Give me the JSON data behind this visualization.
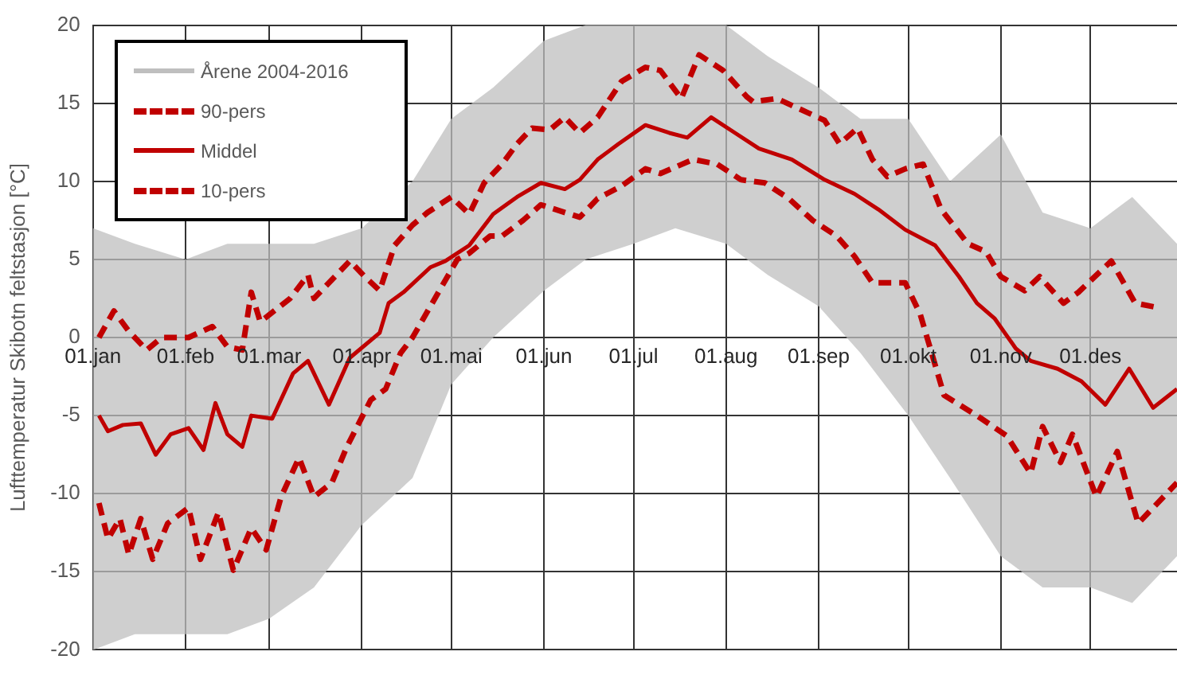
{
  "chart_data": {
    "type": "line",
    "ylabel": "Lufttemperatur Skibotn feltstasjon [°C]",
    "xlim": [
      "--01-01",
      "--12-30"
    ],
    "xticks": [
      {
        "value": "--01-01",
        "label": "01.jan"
      },
      {
        "value": "--02-01",
        "label": "01.feb"
      },
      {
        "value": "--03-01",
        "label": "01.mar"
      },
      {
        "value": "--04-01",
        "label": "01.apr"
      },
      {
        "value": "--05-01",
        "label": "01.mai"
      },
      {
        "value": "--06-01",
        "label": "01.jun"
      },
      {
        "value": "--07-01",
        "label": "01.jul"
      },
      {
        "value": "--08-01",
        "label": "01.aug"
      },
      {
        "value": "--09-01",
        "label": "01.sep"
      },
      {
        "value": "--10-01",
        "label": "01.okt"
      },
      {
        "value": "--11-01",
        "label": "01.nov"
      },
      {
        "value": "--12-01",
        "label": "01.des"
      }
    ],
    "ylim": [
      -20,
      20
    ],
    "yticks": [
      -20,
      -15,
      -10,
      -5,
      0,
      5,
      10,
      15,
      20
    ],
    "grid": true,
    "legend": "top left",
    "series": [
      {
        "name": "Årene 2004-2016",
        "color": "#bfbfbf",
        "x": [
          "--01-01",
          "--01-15",
          "--02-01",
          "--02-15",
          "--03-01",
          "--03-16",
          "--04-01",
          "--04-18",
          "--05-01",
          "--05-15",
          "--06-01",
          "--06-15",
          "--07-01",
          "--07-15",
          "--08-01",
          "--08-15",
          "--09-01",
          "--09-15",
          "--10-01",
          "--10-15",
          "--11-01",
          "--11-15",
          "--12-01",
          "--12-15",
          "--12-30"
        ],
        "values": [
          null,
          null,
          null,
          null,
          null,
          null,
          null,
          null,
          null,
          null,
          null,
          null,
          null,
          null,
          null,
          null,
          null,
          null,
          null,
          null,
          null,
          null,
          null,
          null,
          null
        ],
        "upper": [
          7,
          6,
          5,
          6,
          6,
          6,
          7,
          10,
          14,
          16,
          19,
          20,
          20,
          20,
          20,
          18,
          16,
          14,
          14,
          10,
          13,
          8,
          7,
          9,
          6
        ],
        "lower": [
          -20,
          -19,
          -19,
          -19,
          -18,
          -16,
          -12,
          -9,
          -3,
          0,
          3,
          5,
          6,
          7,
          6,
          4,
          2,
          -1,
          -5,
          -9,
          -14,
          -16,
          -16,
          -17,
          -14
        ]
      },
      {
        "name": "90-pers",
        "color": "#c00000",
        "line_style": "dashed",
        "x": [
          "--01-03",
          "--01-08",
          "--01-13",
          "--01-19",
          "--01-24",
          "--02-02",
          "--02-10",
          "--02-15",
          "--02-20",
          "--02-23",
          "--02-26",
          "--03-08",
          "--03-14",
          "--03-16",
          "--03-28",
          "--04-02",
          "--04-07",
          "--04-12",
          "--04-18",
          "--04-23",
          "--05-01",
          "--05-07",
          "--05-12",
          "--05-18",
          "--05-23",
          "--05-28",
          "--06-03",
          "--06-08",
          "--06-13",
          "--06-19",
          "--06-27",
          "--07-05",
          "--07-10",
          "--07-17",
          "--07-23",
          "--07-31",
          "--08-08",
          "--08-10",
          "--08-18",
          "--08-26",
          "--09-03",
          "--09-08",
          "--09-14",
          "--09-19",
          "--09-24",
          "--09-30",
          "--10-06",
          "--10-12",
          "--10-21",
          "--10-27",
          "--11-01",
          "--11-09",
          "--11-14",
          "--11-22",
          "--11-27",
          "--12-08",
          "--12-16",
          "--12-24"
        ],
        "values": [
          0,
          1.7,
          0.4,
          -0.8,
          0,
          0,
          0.7,
          -0.6,
          -0.8,
          2.9,
          1,
          2.5,
          4,
          2.5,
          4.9,
          3.9,
          3,
          5.9,
          7.2,
          8,
          9,
          7.9,
          9.9,
          11.1,
          12.4,
          13.4,
          13.3,
          14.1,
          13.1,
          14.1,
          16.4,
          17.3,
          17.1,
          15.3,
          18.1,
          17.1,
          15.4,
          15.1,
          15.3,
          14.6,
          13.9,
          12.4,
          13.4,
          11.4,
          10.3,
          10.8,
          11.1,
          8.2,
          6,
          5.5,
          3.9,
          3,
          3.9,
          2.2,
          2.9,
          4.9,
          2.2,
          1.9
        ]
      },
      {
        "name": "Middel",
        "color": "#c00000",
        "line_style": "solid",
        "x": [
          "--01-03",
          "--01-06",
          "--01-11",
          "--01-17",
          "--01-22",
          "--01-27",
          "--02-02",
          "--02-07",
          "--02-11",
          "--02-15",
          "--02-20",
          "--02-23",
          "--03-02",
          "--03-09",
          "--03-14",
          "--03-21",
          "--03-28",
          "--04-07",
          "--04-10",
          "--04-15",
          "--04-24",
          "--04-29",
          "--05-07",
          "--05-15",
          "--05-23",
          "--05-31",
          "--06-08",
          "--06-13",
          "--06-19",
          "--06-26",
          "--07-05",
          "--07-13",
          "--07-19",
          "--07-27",
          "--08-04",
          "--08-12",
          "--08-23",
          "--09-03",
          "--09-13",
          "--09-21",
          "--09-30",
          "--10-10",
          "--10-18",
          "--10-24",
          "--10-30",
          "--11-06",
          "--11-11",
          "--11-20",
          "--11-28",
          "--12-06",
          "--12-14",
          "--12-22",
          "--12-30"
        ],
        "values": [
          -5,
          -6,
          -5.6,
          -5.5,
          -7.5,
          -6.2,
          -5.8,
          -7.2,
          -4.2,
          -6.2,
          -7,
          -5,
          -5.2,
          -2.3,
          -1.5,
          -4.3,
          -1.3,
          0.3,
          2.2,
          2.9,
          4.5,
          4.9,
          5.9,
          7.9,
          9,
          9.9,
          9.5,
          10.1,
          11.4,
          12.4,
          13.6,
          13.1,
          12.8,
          14.1,
          13.1,
          12.1,
          11.4,
          10.1,
          9.2,
          8.2,
          6.9,
          5.9,
          3.9,
          2.2,
          1.2,
          -0.7,
          -1.5,
          -2,
          -2.8,
          -4.3,
          -2,
          -4.5,
          -3.3
        ]
      },
      {
        "name": "10-pers",
        "color": "#c00000",
        "line_style": "dashed",
        "x": [
          "--01-03",
          "--01-06",
          "--01-10",
          "--01-13",
          "--01-17",
          "--01-21",
          "--01-26",
          "--02-02",
          "--02-06",
          "--02-12",
          "--02-17",
          "--02-23",
          "--02-28",
          "--03-05",
          "--03-11",
          "--03-16",
          "--03-22",
          "--03-27",
          "--04-04",
          "--04-09",
          "--04-14",
          "--04-18",
          "--05-03",
          "--05-07",
          "--05-14",
          "--05-18",
          "--05-25",
          "--05-31",
          "--06-13",
          "--06-19",
          "--06-27",
          "--07-05",
          "--07-10",
          "--07-21",
          "--07-29",
          "--08-06",
          "--08-14",
          "--08-22",
          "--08-30",
          "--09-07",
          "--09-13",
          "--09-19",
          "--09-30",
          "--10-05",
          "--10-13",
          "--10-24",
          "--11-03",
          "--11-11",
          "--11-15",
          "--11-21",
          "--11-25",
          "--12-03",
          "--12-10",
          "--12-17",
          "--12-30"
        ],
        "values": [
          -10.6,
          -12.9,
          -11.6,
          -13.9,
          -11.6,
          -14.2,
          -11.9,
          -10.9,
          -14.2,
          -11.2,
          -14.9,
          -12.2,
          -13.6,
          -10.2,
          -7.7,
          -10.2,
          -9.3,
          -7,
          -4,
          -3.3,
          -1,
          0,
          5,
          5.4,
          6.5,
          6.5,
          7.5,
          8.5,
          7.7,
          8.9,
          9.7,
          10.8,
          10.5,
          11.4,
          11.1,
          10.1,
          9.9,
          8.9,
          7.5,
          6.5,
          5.2,
          3.5,
          3.5,
          1.5,
          -3.7,
          -5,
          -6.3,
          -8.7,
          -5.7,
          -8,
          -6.2,
          -10.2,
          -7.3,
          -11.9,
          -9.3
        ]
      }
    ]
  }
}
